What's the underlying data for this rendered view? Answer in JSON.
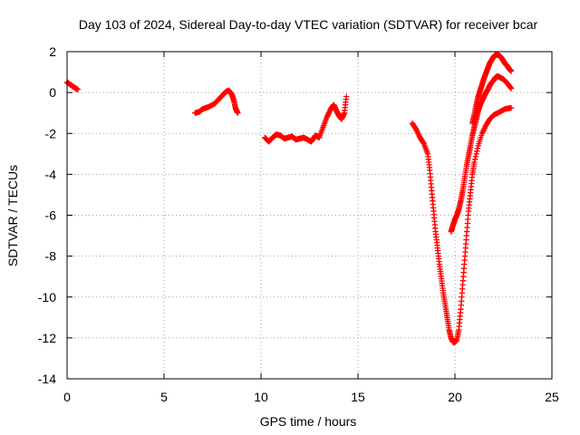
{
  "chart_data": {
    "type": "scatter",
    "title": "Day 103 of 2024, Sidereal Day-to-day VTEC variation (SDTVAR) for receiver bcar",
    "xlabel": "GPS time / hours",
    "ylabel": "SDTVAR / TECUs",
    "xlim": [
      0,
      25
    ],
    "ylim": [
      -14,
      2
    ],
    "xticks": [
      0,
      5,
      10,
      15,
      20,
      25
    ],
    "yticks": [
      -14,
      -12,
      -10,
      -8,
      -6,
      -4,
      -2,
      0,
      2
    ],
    "grid": true,
    "marker": "plus",
    "series_color": "#ff0000",
    "segments": [
      [
        [
          0.0,
          0.5
        ],
        [
          0.15,
          0.4
        ],
        [
          0.3,
          0.3
        ],
        [
          0.45,
          0.2
        ],
        [
          0.55,
          0.15
        ]
      ],
      [
        [
          6.6,
          -1.0
        ],
        [
          6.8,
          -0.95
        ],
        [
          7.0,
          -0.8
        ],
        [
          7.3,
          -0.7
        ],
        [
          7.6,
          -0.55
        ],
        [
          7.8,
          -0.35
        ],
        [
          8.0,
          -0.15
        ],
        [
          8.2,
          0.05
        ],
        [
          8.35,
          0.1
        ],
        [
          8.5,
          -0.1
        ],
        [
          8.6,
          -0.4
        ],
        [
          8.7,
          -0.8
        ],
        [
          8.8,
          -1.0
        ]
      ],
      [
        [
          10.2,
          -2.2
        ],
        [
          10.4,
          -2.4
        ],
        [
          10.6,
          -2.2
        ],
        [
          10.8,
          -2.05
        ],
        [
          11.0,
          -2.1
        ],
        [
          11.2,
          -2.25
        ],
        [
          11.4,
          -2.2
        ],
        [
          11.6,
          -2.15
        ],
        [
          11.8,
          -2.3
        ],
        [
          12.0,
          -2.25
        ],
        [
          12.2,
          -2.2
        ],
        [
          12.4,
          -2.3
        ],
        [
          12.6,
          -2.4
        ],
        [
          12.8,
          -2.1
        ],
        [
          13.0,
          -2.2
        ],
        [
          13.2,
          -1.7
        ],
        [
          13.4,
          -1.2
        ],
        [
          13.6,
          -0.8
        ],
        [
          13.75,
          -0.6
        ],
        [
          13.9,
          -0.9
        ],
        [
          14.0,
          -1.1
        ],
        [
          14.15,
          -1.3
        ],
        [
          14.3,
          -1.0
        ],
        [
          14.4,
          -0.2
        ]
      ],
      [
        [
          17.8,
          -1.5
        ],
        [
          18.0,
          -1.8
        ],
        [
          18.2,
          -2.2
        ],
        [
          18.4,
          -2.5
        ],
        [
          18.6,
          -3.0
        ],
        [
          18.7,
          -3.8
        ],
        [
          18.8,
          -4.8
        ],
        [
          18.9,
          -5.8
        ],
        [
          19.0,
          -6.8
        ],
        [
          19.1,
          -7.6
        ],
        [
          19.2,
          -8.4
        ],
        [
          19.3,
          -9.1
        ],
        [
          19.4,
          -9.8
        ],
        [
          19.5,
          -10.4
        ],
        [
          19.6,
          -11.0
        ],
        [
          19.7,
          -11.6
        ],
        [
          19.8,
          -12.0
        ],
        [
          19.9,
          -12.2
        ],
        [
          20.0,
          -12.2
        ],
        [
          20.1,
          -12.1
        ],
        [
          20.2,
          -11.6
        ],
        [
          20.3,
          -10.6
        ],
        [
          20.4,
          -9.4
        ],
        [
          20.5,
          -8.2
        ],
        [
          20.6,
          -7.0
        ],
        [
          20.7,
          -5.8
        ],
        [
          20.8,
          -4.9
        ],
        [
          20.9,
          -4.0
        ],
        [
          21.0,
          -3.4
        ],
        [
          21.2,
          -2.6
        ],
        [
          21.4,
          -2.0
        ],
        [
          21.6,
          -1.6
        ],
        [
          21.8,
          -1.3
        ],
        [
          22.0,
          -1.1
        ],
        [
          22.3,
          -0.95
        ],
        [
          22.6,
          -0.8
        ],
        [
          22.9,
          -0.75
        ]
      ],
      [
        [
          19.8,
          -6.8
        ],
        [
          19.9,
          -6.5
        ],
        [
          20.0,
          -6.2
        ],
        [
          20.1,
          -6.0
        ],
        [
          20.2,
          -5.7
        ],
        [
          20.3,
          -5.3
        ],
        [
          20.4,
          -4.8
        ],
        [
          20.5,
          -4.2
        ],
        [
          20.6,
          -3.6
        ],
        [
          20.7,
          -3.1
        ],
        [
          20.8,
          -2.6
        ],
        [
          20.9,
          -2.1
        ],
        [
          21.0,
          -1.7
        ],
        [
          21.1,
          -1.3
        ],
        [
          21.2,
          -0.9
        ],
        [
          21.3,
          -0.6
        ],
        [
          21.4,
          -0.4
        ],
        [
          21.5,
          -0.2
        ],
        [
          21.6,
          0.0
        ],
        [
          21.7,
          0.15
        ],
        [
          21.8,
          0.35
        ],
        [
          21.9,
          0.5
        ],
        [
          22.0,
          0.6
        ],
        [
          22.1,
          0.75
        ],
        [
          22.2,
          0.8
        ],
        [
          22.3,
          0.75
        ],
        [
          22.5,
          0.65
        ],
        [
          22.7,
          0.45
        ],
        [
          22.9,
          0.2
        ]
      ],
      [
        [
          20.9,
          -1.5
        ],
        [
          21.0,
          -1.1
        ],
        [
          21.1,
          -0.6
        ],
        [
          21.2,
          -0.2
        ],
        [
          21.3,
          0.1
        ],
        [
          21.4,
          0.4
        ],
        [
          21.5,
          0.7
        ],
        [
          21.6,
          0.95
        ],
        [
          21.7,
          1.2
        ],
        [
          21.8,
          1.45
        ],
        [
          21.9,
          1.6
        ],
        [
          22.0,
          1.75
        ],
        [
          22.1,
          1.85
        ],
        [
          22.2,
          1.85
        ],
        [
          22.3,
          1.8
        ],
        [
          22.4,
          1.7
        ],
        [
          22.5,
          1.55
        ],
        [
          22.6,
          1.4
        ],
        [
          22.7,
          1.3
        ],
        [
          22.8,
          1.15
        ],
        [
          22.9,
          1.05
        ]
      ]
    ]
  }
}
